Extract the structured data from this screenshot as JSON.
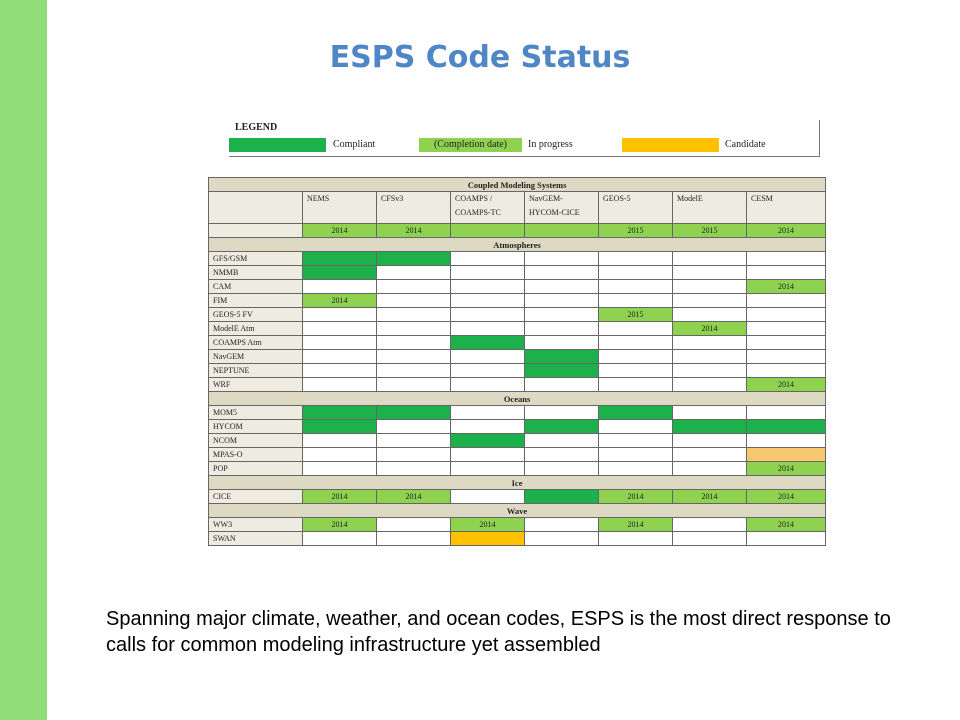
{
  "slide": {
    "title": "ESPS Code Status",
    "caption": "Spanning major climate, weather, and ocean codes, ESPS is the most direct response to calls for common modeling infrastructure yet assembled"
  },
  "colors": {
    "sidebar": "#8fdc78",
    "title": "#4f86c6",
    "compliant": "#1db14b",
    "in_progress": "#8fd250",
    "candidate": "#ffc000",
    "candidate_light": "#f9c86e",
    "header_fill": "#ddd9c3",
    "name_fill": "#eeece1"
  },
  "legend": {
    "title": "LEGEND",
    "compliant": "Compliant",
    "completion_date": "(Completion date)",
    "in_progress": "In progress",
    "candidate": "Candidate"
  },
  "table": {
    "title": "Coupled Modeling Systems",
    "columns": [
      {
        "line1": "NEMS",
        "line2": ""
      },
      {
        "line1": "CFSv3",
        "line2": ""
      },
      {
        "line1": "COAMPS /",
        "line2": "COAMPS-TC"
      },
      {
        "line1": "NavGEM-",
        "line2": "HYCOM-CICE"
      },
      {
        "line1": "GEOS-5",
        "line2": ""
      },
      {
        "line1": "ModelE",
        "line2": ""
      },
      {
        "line1": "CESM",
        "line2": ""
      }
    ],
    "year_row": {
      "name": "",
      "cells": [
        {
          "s": "p",
          "t": "2014"
        },
        {
          "s": "p",
          "t": "2014"
        },
        {
          "s": "c",
          "t": ""
        },
        {
          "s": "c",
          "t": ""
        },
        {
          "s": "p",
          "t": "2015"
        },
        {
          "s": "p",
          "t": "2015"
        },
        {
          "s": "p",
          "t": "2014"
        }
      ]
    },
    "sections": [
      {
        "name": "Atmospheres",
        "rows": [
          {
            "name": "GFS/GSM",
            "cells": [
              {
                "s": "c",
                "t": ""
              },
              {
                "s": "c",
                "t": ""
              },
              {
                "s": "",
                "t": ""
              },
              {
                "s": "",
                "t": ""
              },
              {
                "s": "",
                "t": ""
              },
              {
                "s": "",
                "t": ""
              },
              {
                "s": "",
                "t": ""
              }
            ]
          },
          {
            "name": "NMMB",
            "cells": [
              {
                "s": "c",
                "t": ""
              },
              {
                "s": "",
                "t": ""
              },
              {
                "s": "",
                "t": ""
              },
              {
                "s": "",
                "t": ""
              },
              {
                "s": "",
                "t": ""
              },
              {
                "s": "",
                "t": ""
              },
              {
                "s": "",
                "t": ""
              }
            ]
          },
          {
            "name": "CAM",
            "cells": [
              {
                "s": "",
                "t": ""
              },
              {
                "s": "",
                "t": ""
              },
              {
                "s": "",
                "t": ""
              },
              {
                "s": "",
                "t": ""
              },
              {
                "s": "",
                "t": ""
              },
              {
                "s": "",
                "t": ""
              },
              {
                "s": "p",
                "t": "2014"
              }
            ]
          },
          {
            "name": "FIM",
            "cells": [
              {
                "s": "p",
                "t": "2014"
              },
              {
                "s": "",
                "t": ""
              },
              {
                "s": "",
                "t": ""
              },
              {
                "s": "",
                "t": ""
              },
              {
                "s": "",
                "t": ""
              },
              {
                "s": "",
                "t": ""
              },
              {
                "s": "",
                "t": ""
              }
            ]
          },
          {
            "name": "GEOS-5 FV",
            "cells": [
              {
                "s": "",
                "t": ""
              },
              {
                "s": "",
                "t": ""
              },
              {
                "s": "",
                "t": ""
              },
              {
                "s": "",
                "t": ""
              },
              {
                "s": "p",
                "t": "2015"
              },
              {
                "s": "",
                "t": ""
              },
              {
                "s": "",
                "t": ""
              }
            ]
          },
          {
            "name": "ModelE Atm",
            "cells": [
              {
                "s": "",
                "t": ""
              },
              {
                "s": "",
                "t": ""
              },
              {
                "s": "",
                "t": ""
              },
              {
                "s": "",
                "t": ""
              },
              {
                "s": "",
                "t": ""
              },
              {
                "s": "p",
                "t": "2014"
              },
              {
                "s": "",
                "t": ""
              }
            ]
          },
          {
            "name": "COAMPS Atm",
            "cells": [
              {
                "s": "",
                "t": ""
              },
              {
                "s": "",
                "t": ""
              },
              {
                "s": "c",
                "t": ""
              },
              {
                "s": "",
                "t": ""
              },
              {
                "s": "",
                "t": ""
              },
              {
                "s": "",
                "t": ""
              },
              {
                "s": "",
                "t": ""
              }
            ]
          },
          {
            "name": "NavGEM",
            "cells": [
              {
                "s": "",
                "t": ""
              },
              {
                "s": "",
                "t": ""
              },
              {
                "s": "",
                "t": ""
              },
              {
                "s": "c",
                "t": ""
              },
              {
                "s": "",
                "t": ""
              },
              {
                "s": "",
                "t": ""
              },
              {
                "s": "",
                "t": ""
              }
            ]
          },
          {
            "name": "NEPTUNE",
            "cells": [
              {
                "s": "",
                "t": ""
              },
              {
                "s": "",
                "t": ""
              },
              {
                "s": "",
                "t": ""
              },
              {
                "s": "c",
                "t": ""
              },
              {
                "s": "",
                "t": ""
              },
              {
                "s": "",
                "t": ""
              },
              {
                "s": "",
                "t": ""
              }
            ]
          },
          {
            "name": "WRF",
            "cells": [
              {
                "s": "",
                "t": ""
              },
              {
                "s": "",
                "t": ""
              },
              {
                "s": "",
                "t": ""
              },
              {
                "s": "",
                "t": ""
              },
              {
                "s": "",
                "t": ""
              },
              {
                "s": "",
                "t": ""
              },
              {
                "s": "p",
                "t": "2014"
              }
            ]
          }
        ]
      },
      {
        "name": "Oceans",
        "rows": [
          {
            "name": "MOM5",
            "cells": [
              {
                "s": "c",
                "t": ""
              },
              {
                "s": "c",
                "t": ""
              },
              {
                "s": "",
                "t": ""
              },
              {
                "s": "",
                "t": ""
              },
              {
                "s": "c",
                "t": ""
              },
              {
                "s": "",
                "t": ""
              },
              {
                "s": "",
                "t": ""
              }
            ]
          },
          {
            "name": "HYCOM",
            "cells": [
              {
                "s": "c",
                "t": ""
              },
              {
                "s": "",
                "t": ""
              },
              {
                "s": "",
                "t": ""
              },
              {
                "s": "c",
                "t": ""
              },
              {
                "s": "",
                "t": ""
              },
              {
                "s": "c",
                "t": ""
              },
              {
                "s": "c",
                "t": ""
              }
            ]
          },
          {
            "name": "NCOM",
            "cells": [
              {
                "s": "",
                "t": ""
              },
              {
                "s": "",
                "t": ""
              },
              {
                "s": "c",
                "t": ""
              },
              {
                "s": "",
                "t": ""
              },
              {
                "s": "",
                "t": ""
              },
              {
                "s": "",
                "t": ""
              },
              {
                "s": "",
                "t": ""
              }
            ]
          },
          {
            "name": "MPAS-O",
            "cells": [
              {
                "s": "",
                "t": ""
              },
              {
                "s": "",
                "t": ""
              },
              {
                "s": "",
                "t": ""
              },
              {
                "s": "",
                "t": ""
              },
              {
                "s": "",
                "t": ""
              },
              {
                "s": "",
                "t": ""
              },
              {
                "s": "l",
                "t": ""
              }
            ]
          },
          {
            "name": "POP",
            "cells": [
              {
                "s": "",
                "t": ""
              },
              {
                "s": "",
                "t": ""
              },
              {
                "s": "",
                "t": ""
              },
              {
                "s": "",
                "t": ""
              },
              {
                "s": "",
                "t": ""
              },
              {
                "s": "",
                "t": ""
              },
              {
                "s": "p",
                "t": "2014"
              }
            ]
          }
        ]
      },
      {
        "name": "Ice",
        "rows": [
          {
            "name": "CICE",
            "cells": [
              {
                "s": "p",
                "t": "2014"
              },
              {
                "s": "p",
                "t": "2014"
              },
              {
                "s": "",
                "t": ""
              },
              {
                "s": "c",
                "t": ""
              },
              {
                "s": "p",
                "t": "2014"
              },
              {
                "s": "p",
                "t": "2014"
              },
              {
                "s": "p",
                "t": "2014"
              }
            ]
          }
        ]
      },
      {
        "name": "Wave",
        "rows": [
          {
            "name": "WW3",
            "cells": [
              {
                "s": "p",
                "t": "2014"
              },
              {
                "s": "",
                "t": ""
              },
              {
                "s": "p",
                "t": "2014"
              },
              {
                "s": "",
                "t": ""
              },
              {
                "s": "p",
                "t": "2014"
              },
              {
                "s": "",
                "t": ""
              },
              {
                "s": "p",
                "t": "2014"
              }
            ]
          },
          {
            "name": "SWAN",
            "cells": [
              {
                "s": "",
                "t": ""
              },
              {
                "s": "",
                "t": ""
              },
              {
                "s": "d",
                "t": ""
              },
              {
                "s": "",
                "t": ""
              },
              {
                "s": "",
                "t": ""
              },
              {
                "s": "",
                "t": ""
              },
              {
                "s": "",
                "t": ""
              }
            ]
          }
        ]
      }
    ]
  }
}
